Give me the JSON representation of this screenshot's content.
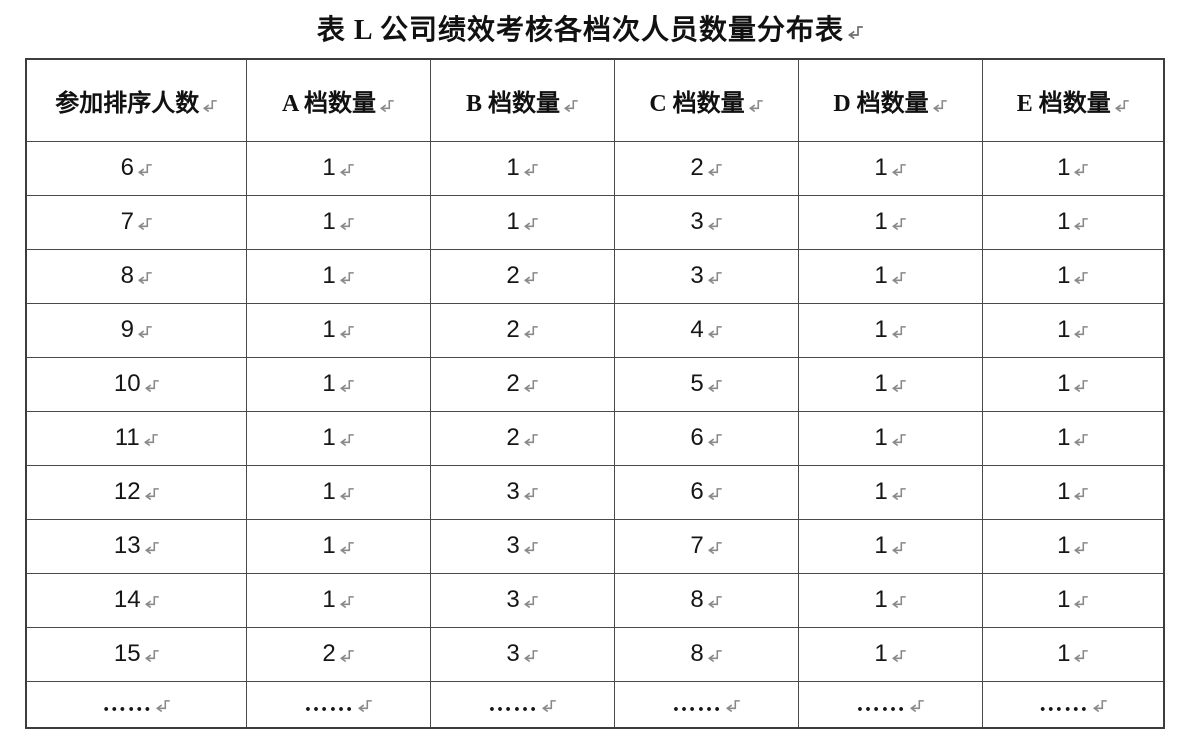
{
  "title": "表 L 公司绩效考核各档次人员数量分布表",
  "paragraph_mark": "return-mark",
  "colors": {
    "background": "#ffffff",
    "border": "#4a4a4a",
    "text": "#161616",
    "mark": "#8a8a8a"
  },
  "table": {
    "headers": [
      "参加排序人数",
      "A 档数量",
      "B 档数量",
      "C 档数量",
      "D 档数量",
      "E 档数量"
    ],
    "rows": [
      [
        "6",
        "1",
        "1",
        "2",
        "1",
        "1"
      ],
      [
        "7",
        "1",
        "1",
        "3",
        "1",
        "1"
      ],
      [
        "8",
        "1",
        "2",
        "3",
        "1",
        "1"
      ],
      [
        "9",
        "1",
        "2",
        "4",
        "1",
        "1"
      ],
      [
        "10",
        "1",
        "2",
        "5",
        "1",
        "1"
      ],
      [
        "11",
        "1",
        "2",
        "6",
        "1",
        "1"
      ],
      [
        "12",
        "1",
        "3",
        "6",
        "1",
        "1"
      ],
      [
        "13",
        "1",
        "3",
        "7",
        "1",
        "1"
      ],
      [
        "14",
        "1",
        "3",
        "8",
        "1",
        "1"
      ],
      [
        "15",
        "2",
        "3",
        "8",
        "1",
        "1"
      ],
      [
        "……",
        "……",
        "……",
        "……",
        "……",
        "……"
      ]
    ]
  }
}
